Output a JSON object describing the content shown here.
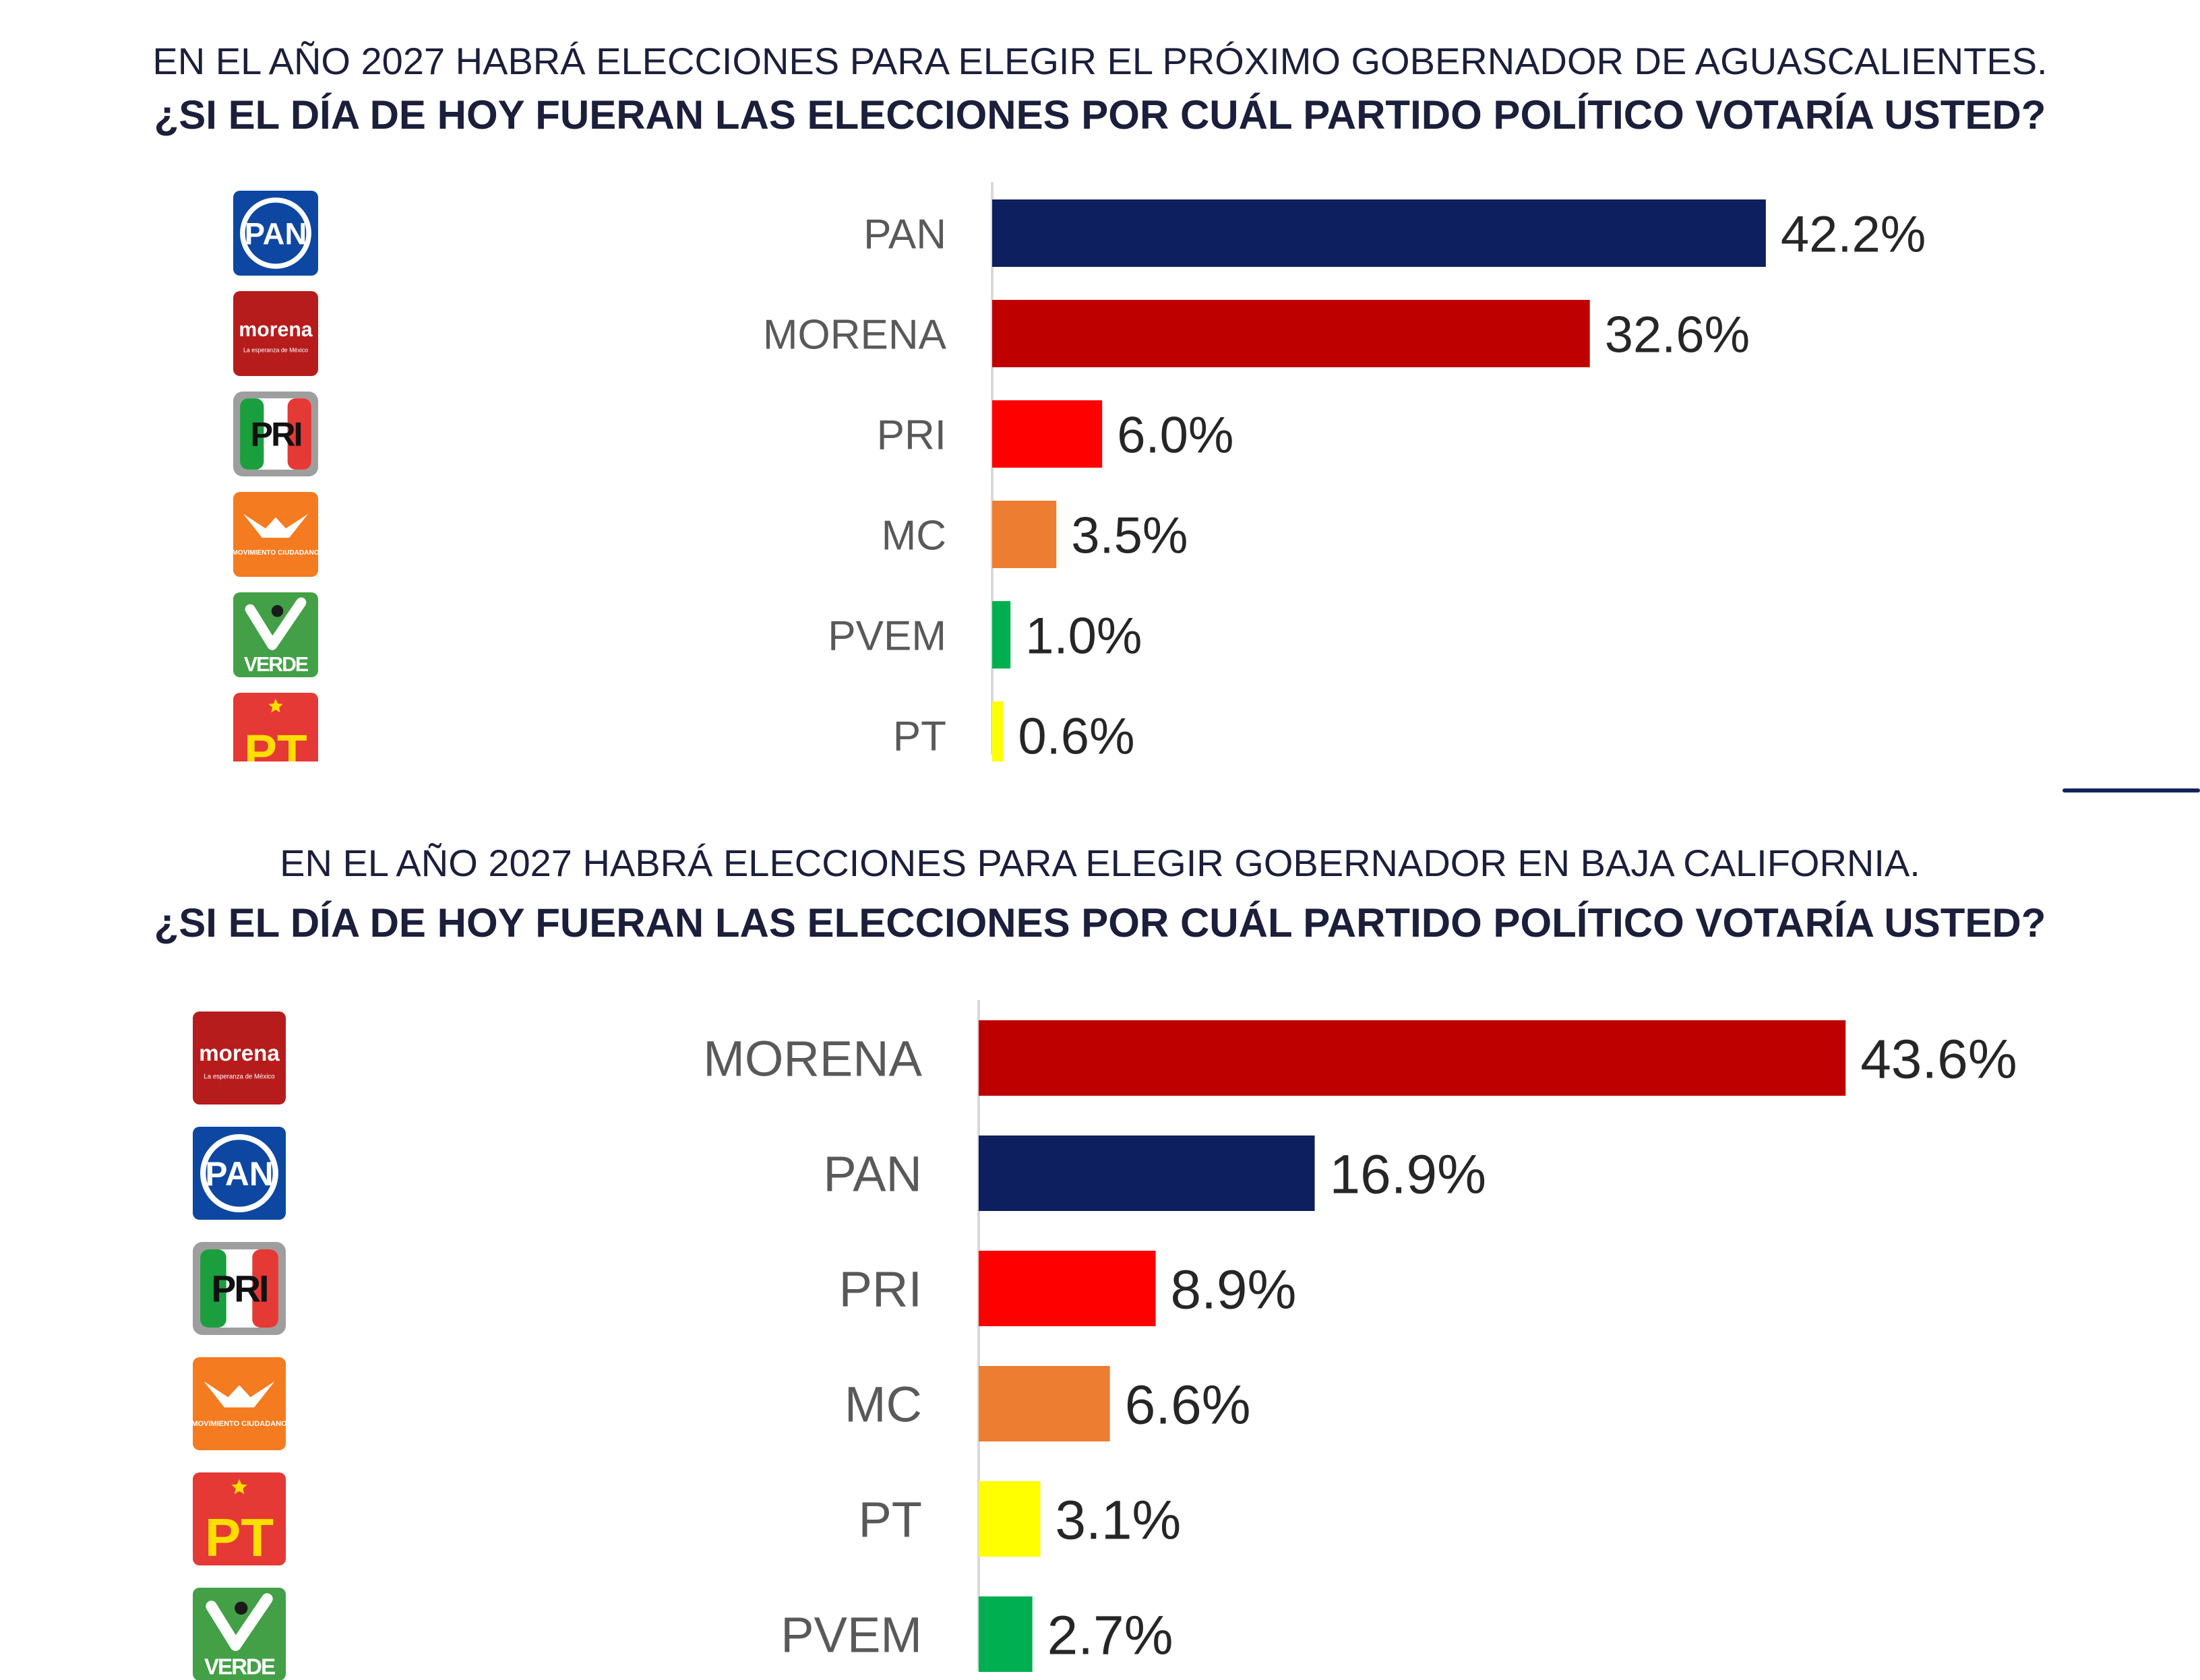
{
  "charts": [
    {
      "line1": "EN EL AÑO 2027 HABRÁ ELECCIONES PARA ELEGIR EL PRÓXIMO GOBERNADOR DE AGUASCALIENTES.",
      "line2": "¿SI EL DÍA DE HOY FUERAN LAS ELECCIONES POR CUÁL PARTIDO POLÍTICO VOTARÍA USTED?"
    },
    {
      "line1": "EN EL AÑO 2027 HABRÁ ELECCIONES PARA ELEGIR GOBERNADOR EN BAJA CALIFORNIA.",
      "line2": "¿SI EL DÍA DE HOY FUERAN LAS ELECCIONES POR CUÁL PARTIDO POLÍTICO VOTARÍA USTED?"
    }
  ],
  "logos": {
    "pan": "PAN",
    "morena": "morena",
    "morena_tagline": "La esperanza de México",
    "pri": "PRI",
    "mc": "MOVIMIENTO CIUDADANO",
    "verde": "VERDE",
    "pt": "PT"
  },
  "colors": {
    "PAN": "#0d1f5e",
    "MORENA": "#bf0000",
    "PRI": "#ff0000",
    "MC": "#ed7d31",
    "PVEM": "#00b050",
    "PT": "#ffff00"
  },
  "chart_data": [
    {
      "type": "bar",
      "orientation": "horizontal",
      "categories": [
        "PAN",
        "MORENA",
        "PRI",
        "MC",
        "PVEM",
        "PT"
      ],
      "values": [
        42.2,
        32.6,
        6.0,
        3.5,
        1.0,
        0.6
      ],
      "value_labels": [
        "42.2%",
        "32.6%",
        "6.0%",
        "3.5%",
        "1.0%",
        "0.6%"
      ],
      "logos": [
        "pan",
        "morena",
        "pri",
        "mc",
        "verde",
        "pt"
      ],
      "grid": false
    },
    {
      "type": "bar",
      "orientation": "horizontal",
      "categories": [
        "MORENA",
        "PAN",
        "PRI",
        "MC",
        "PT",
        "PVEM"
      ],
      "values": [
        43.6,
        16.9,
        8.9,
        6.6,
        3.1,
        2.7
      ],
      "value_labels": [
        "43.6%",
        "16.9%",
        "8.9%",
        "6.6%",
        "3.1%",
        "2.7%"
      ],
      "logos": [
        "morena",
        "pan",
        "pri",
        "mc",
        "pt",
        "verde"
      ],
      "grid": false
    }
  ]
}
